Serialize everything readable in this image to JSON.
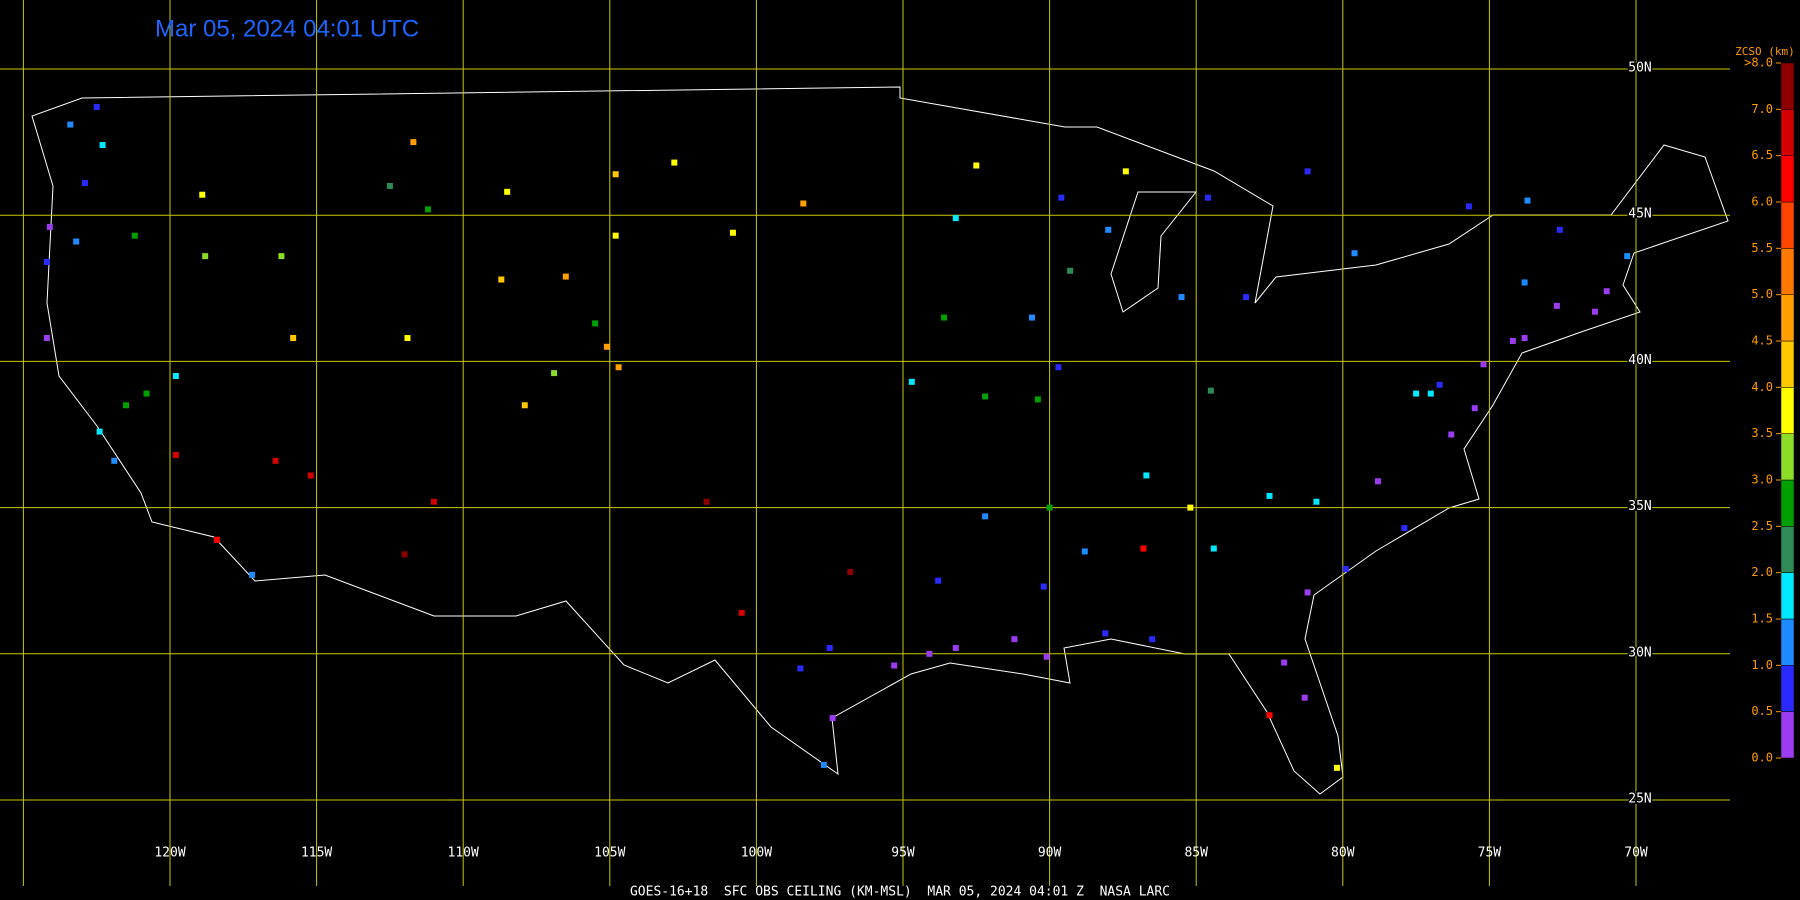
{
  "header": {
    "title": "Mar 05, 2024 04:01 UTC"
  },
  "footer": "GOES-16+18  SFC OBS CEILING (KM-MSL)  MAR 05, 2024 04:01 Z  NASA LARC",
  "map": {
    "lon_ticks": [
      {
        "value": -125,
        "label": null
      },
      {
        "value": -120,
        "label": "120W"
      },
      {
        "value": -115,
        "label": "115W"
      },
      {
        "value": -110,
        "label": "110W"
      },
      {
        "value": -105,
        "label": "105W"
      },
      {
        "value": -100,
        "label": "100W"
      },
      {
        "value": -95,
        "label": "95W"
      },
      {
        "value": -90,
        "label": "90W"
      },
      {
        "value": -85,
        "label": "85W"
      },
      {
        "value": -80,
        "label": "80W"
      },
      {
        "value": -75,
        "label": "75W"
      },
      {
        "value": -70,
        "label": "70W"
      }
    ],
    "lat_ticks": [
      {
        "value": 50,
        "label": "50N"
      },
      {
        "value": 45,
        "label": "45N"
      },
      {
        "value": 40,
        "label": "40N"
      },
      {
        "value": 35,
        "label": "35N"
      },
      {
        "value": 30,
        "label": "30N"
      },
      {
        "value": 25,
        "label": "25N"
      }
    ],
    "grid_color": "#c8c800",
    "stations": [
      [
        -122.3,
        47.4,
        1.6
      ],
      [
        -122.5,
        48.7,
        0.8
      ],
      [
        -123.4,
        48.1,
        1.3
      ],
      [
        -122.9,
        46.1,
        0.6
      ],
      [
        -124.1,
        44.6,
        0.4
      ],
      [
        -123.2,
        44.1,
        1.1
      ],
      [
        -124.2,
        43.4,
        0.9
      ],
      [
        -124.2,
        40.8,
        0.3
      ],
      [
        -121.2,
        44.3,
        2.7
      ],
      [
        -118.9,
        45.7,
        3.6
      ],
      [
        -118.8,
        43.6,
        3.1
      ],
      [
        -116.2,
        43.6,
        3.3
      ],
      [
        -111.7,
        47.5,
        4.6
      ],
      [
        -112.5,
        46,
        2.4
      ],
      [
        -108.5,
        45.8,
        3.8
      ],
      [
        -104.8,
        46.4,
        4.4
      ],
      [
        -111.2,
        45.2,
        2.7
      ],
      [
        -106.5,
        42.9,
        4.7
      ],
      [
        -108.7,
        42.8,
        4.1
      ],
      [
        -105.5,
        41.3,
        2.8
      ],
      [
        -104.8,
        44.3,
        3.9
      ],
      [
        -104.7,
        39.8,
        4.6
      ],
      [
        -105.1,
        40.5,
        4.8
      ],
      [
        -106.9,
        39.6,
        3.4
      ],
      [
        -107.9,
        38.5,
        4.2
      ],
      [
        -102.8,
        46.8,
        3.7
      ],
      [
        -100.8,
        44.4,
        3.9
      ],
      [
        -98.4,
        45.4,
        4.6
      ],
      [
        -111.9,
        40.8,
        3.6
      ],
      [
        -115.8,
        40.8,
        4.1
      ],
      [
        -119.8,
        39.5,
        1.8
      ],
      [
        -116.4,
        36.6,
        6.8
      ],
      [
        -115.2,
        36.1,
        6.5
      ],
      [
        -122.4,
        37.6,
        1.7
      ],
      [
        -121.9,
        36.6,
        1.3
      ],
      [
        -121.5,
        38.5,
        2.5
      ],
      [
        -120.8,
        38.9,
        2.9
      ],
      [
        -119.8,
        36.8,
        6.6
      ],
      [
        -117.2,
        32.7,
        1.1
      ],
      [
        -118.4,
        33.9,
        6.2
      ],
      [
        -111,
        35.2,
        6.9
      ],
      [
        -112,
        33.4,
        7.2
      ],
      [
        -97.5,
        30.2,
        0.5
      ],
      [
        -95.3,
        29.6,
        0.3
      ],
      [
        -97.4,
        27.8,
        0.4
      ],
      [
        -98.5,
        29.5,
        0.7
      ],
      [
        -96.8,
        32.8,
        7.3
      ],
      [
        -100.5,
        31.4,
        6.7
      ],
      [
        -101.7,
        35.2,
        7.5
      ],
      [
        -94.1,
        30,
        0.4
      ],
      [
        -97.7,
        26.2,
        1.1
      ],
      [
        -93.2,
        30.2,
        0.3
      ],
      [
        -91.2,
        30.5,
        0.2
      ],
      [
        -90.1,
        29.9,
        0.4
      ],
      [
        -88.1,
        30.7,
        0.6
      ],
      [
        -86.5,
        30.5,
        0.8
      ],
      [
        -92.2,
        34.7,
        1.2
      ],
      [
        -90.2,
        32.3,
        0.7
      ],
      [
        -93.8,
        32.5,
        0.5
      ],
      [
        -88.8,
        33.5,
        1.4
      ],
      [
        -93.6,
        41.5,
        2.6
      ],
      [
        -90.6,
        41.5,
        1.2
      ],
      [
        -89.7,
        39.8,
        0.9
      ],
      [
        -90.4,
        38.7,
        2.8
      ],
      [
        -94.7,
        39.3,
        1.6
      ],
      [
        -92.2,
        38.8,
        2.5
      ],
      [
        -93.2,
        44.9,
        1.9
      ],
      [
        -92.5,
        46.7,
        3.6
      ],
      [
        -89.6,
        45.6,
        0.8
      ],
      [
        -88,
        44.5,
        1.3
      ],
      [
        -89.3,
        43.1,
        2.3
      ],
      [
        -85.5,
        42.2,
        1.4
      ],
      [
        -83.3,
        42.2,
        0.6
      ],
      [
        -84.6,
        45.6,
        0.9
      ],
      [
        -87.4,
        46.5,
        3.7
      ],
      [
        -86.7,
        36.1,
        1.5
      ],
      [
        -84.5,
        39,
        2.2
      ],
      [
        -90,
        35,
        2.7
      ],
      [
        -85.2,
        35,
        3.6
      ],
      [
        -86.8,
        33.6,
        6.4
      ],
      [
        -84.4,
        33.6,
        1.6
      ],
      [
        -81.2,
        32.1,
        0.4
      ],
      [
        -82,
        29.7,
        0.3
      ],
      [
        -81.3,
        28.5,
        0.4
      ],
      [
        -82.5,
        27.9,
        6.1
      ],
      [
        -80.2,
        26.1,
        3.7
      ],
      [
        -80.9,
        35.2,
        1.7
      ],
      [
        -82.5,
        35.4,
        1.9
      ],
      [
        -78.8,
        35.9,
        0.3
      ],
      [
        -77.9,
        34.3,
        0.5
      ],
      [
        -79.9,
        32.9,
        0.9
      ],
      [
        -77.5,
        38.9,
        1.6
      ],
      [
        -77,
        38.9,
        1.7
      ],
      [
        -76.7,
        39.2,
        0.5
      ],
      [
        -75.2,
        39.9,
        0.3
      ],
      [
        -74.2,
        40.7,
        0.4
      ],
      [
        -73.8,
        40.8,
        0.2
      ],
      [
        -76.3,
        37.5,
        0.4
      ],
      [
        -75.5,
        38.4,
        0.3
      ],
      [
        -71,
        42.4,
        0.3
      ],
      [
        -72.7,
        41.9,
        0.2
      ],
      [
        -71.4,
        41.7,
        0.4
      ],
      [
        -73.8,
        42.7,
        1.3
      ],
      [
        -70.3,
        43.6,
        1.1
      ],
      [
        -72.6,
        44.5,
        0.9
      ],
      [
        -73.7,
        45.5,
        1.4
      ],
      [
        -79.6,
        43.7,
        1.1
      ],
      [
        -75.7,
        45.3,
        0.9
      ],
      [
        -81.2,
        46.5,
        0.6
      ]
    ]
  },
  "colorbar": {
    "title": "ZCSO (km)",
    "ticks": [
      {
        "value": 0,
        "label": "0.0"
      },
      {
        "value": 0.5,
        "label": "0.5"
      },
      {
        "value": 1,
        "label": "1.0"
      },
      {
        "value": 1.5,
        "label": "1.5"
      },
      {
        "value": 2,
        "label": "2.0"
      },
      {
        "value": 2.5,
        "label": "2.5"
      },
      {
        "value": 3,
        "label": "3.0"
      },
      {
        "value": 3.5,
        "label": "3.5"
      },
      {
        "value": 4,
        "label": "4.0"
      },
      {
        "value": 4.5,
        "label": "4.5"
      },
      {
        "value": 5,
        "label": "5.0"
      },
      {
        "value": 5.5,
        "label": "5.5"
      },
      {
        "value": 6,
        "label": "6.0"
      },
      {
        "value": 6.5,
        "label": "6.5"
      },
      {
        "value": 7,
        "label": "7.0"
      },
      {
        "value": 8,
        "label": ">8.0"
      }
    ],
    "colors": [
      "#9b3cf0",
      "#2a2aff",
      "#1e8cff",
      "#00e8ff",
      "#2e8b57",
      "#00a000",
      "#8cdc28",
      "#ffff00",
      "#ffc800",
      "#ffa000",
      "#ff7800",
      "#ff4600",
      "#ff0000",
      "#d20000",
      "#8c0000"
    ],
    "label_color": "#ff9900"
  }
}
